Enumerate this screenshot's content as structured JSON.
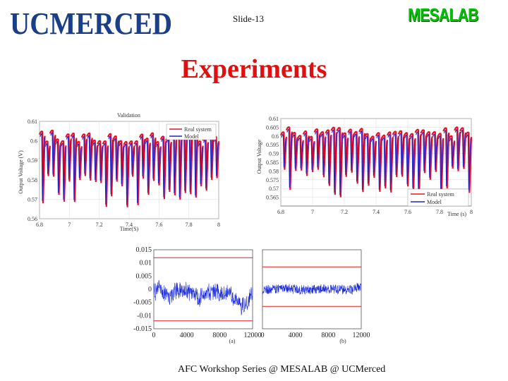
{
  "header": {
    "logo_text": "UCMERCED",
    "slide_label": "Slide-13",
    "lab_logo": "MESALAB"
  },
  "title": "Experiments",
  "footer": "AFC Workshop Series @ MESALAB @ UCMerced",
  "chart_data": [
    {
      "type": "line",
      "title": "Validation",
      "xlabel": "Time(S)",
      "ylabel": "Output Voltage (V)",
      "xlim": [
        6.8,
        8
      ],
      "ylim": [
        0.56,
        0.61
      ],
      "x_ticks": [
        "6.8",
        "7",
        "7.2",
        "7.4",
        "7.6",
        "7.8",
        "8"
      ],
      "y_ticks": [
        "0.61",
        "0.6",
        "0.59",
        "0.58",
        "0.57",
        "0.56"
      ],
      "legend": "top-right",
      "series": [
        {
          "name": "Real system",
          "color": "#e8102a"
        },
        {
          "name": "Model",
          "color": "#2020c8"
        }
      ]
    },
    {
      "type": "line",
      "xlabel": "Time (s)",
      "ylabel": "Output Voltage",
      "xlim": [
        6.8,
        8
      ],
      "ylim": [
        0.56,
        0.61
      ],
      "x_ticks": [
        "6.8",
        "7",
        "7.2",
        "7.4",
        "7.6",
        "7.8",
        "8"
      ],
      "y_ticks": [
        "0.61",
        "0.605",
        "0.6",
        "0.595",
        "0.59",
        "0.585",
        "0.58",
        "0.575",
        "0.57",
        "0.565"
      ],
      "legend": "bottom-right",
      "series": [
        {
          "name": "Real system",
          "color": "#e8102a"
        },
        {
          "name": "Model",
          "color": "#2020c8"
        }
      ]
    },
    {
      "type": "line",
      "panel_label": "(a)",
      "xlim": [
        0,
        12000
      ],
      "ylim": [
        -0.015,
        0.015
      ],
      "x_ticks": [
        "0",
        "4000",
        "8000",
        "12000"
      ],
      "y_ticks": [
        "0.015",
        "0.01",
        "0.005",
        "0",
        "-0.005",
        "-0.01",
        "-0.015"
      ],
      "bounds": [
        0.012,
        -0.012
      ],
      "series": [
        {
          "color": "#1a2ad8"
        }
      ]
    },
    {
      "type": "line",
      "panel_label": "(b)",
      "xlim": [
        0,
        12000
      ],
      "ylim": [
        -0.015,
        0.015
      ],
      "x_ticks": [
        "0",
        "4000",
        "8000",
        "12000"
      ],
      "bounds": [
        0.0085,
        -0.0065
      ],
      "series": [
        {
          "color": "#1a2ad8"
        }
      ]
    }
  ]
}
